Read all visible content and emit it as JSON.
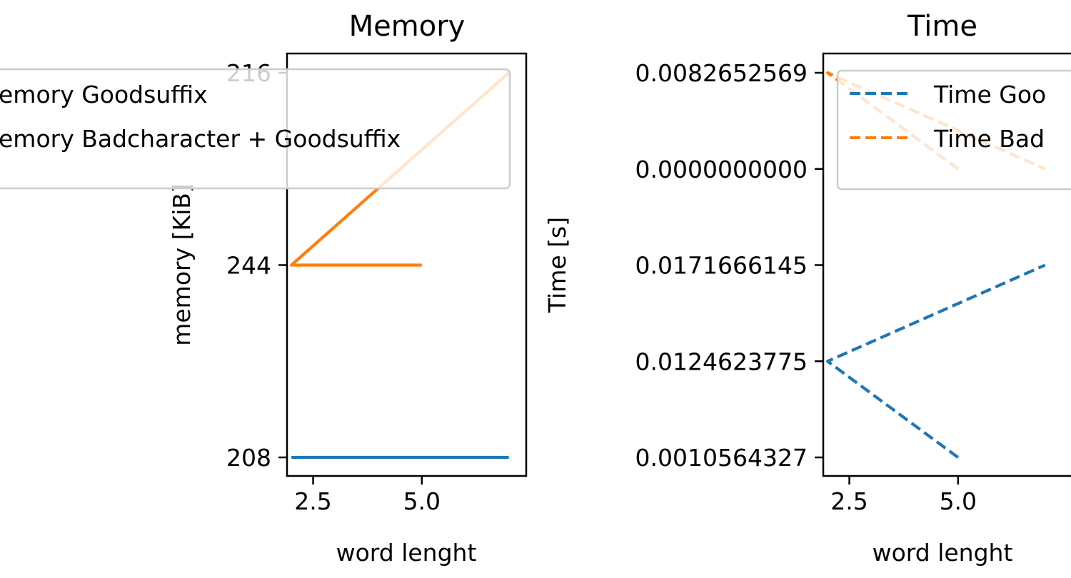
{
  "chart_data": [
    {
      "type": "line",
      "title": "Memory",
      "xlabel": "word lenght",
      "ylabel": "memory [KiB]",
      "xlim": [
        1.9,
        7.4
      ],
      "x_ticks": [
        "2.5",
        "5.0"
      ],
      "x_tick_values": [
        2.5,
        5.0
      ],
      "y_categories": [
        "208",
        "244",
        "216"
      ],
      "legend": "overlapping top-left",
      "series": [
        {
          "name": "Memory Goodsuffix",
          "color": "#1f77b4",
          "style": "solid",
          "points": [
            {
              "x": 2,
              "y": "208"
            },
            {
              "x": 5,
              "y": "208"
            },
            {
              "x": 7,
              "y": "208"
            }
          ]
        },
        {
          "name": "Memory Badcharacter + Goodsuffix",
          "color": "#ff7f0e",
          "style": "solid",
          "points": [
            {
              "x": 5,
              "y": "244"
            },
            {
              "x": 2,
              "y": "244"
            },
            {
              "x": 7,
              "y": "216"
            }
          ]
        }
      ]
    },
    {
      "type": "line",
      "title": "Time",
      "xlabel": "word lenght",
      "ylabel": "Time [s]",
      "xlim": [
        1.9,
        7.4
      ],
      "x_ticks": [
        "2.5",
        "5.0"
      ],
      "x_tick_values": [
        2.5,
        5.0
      ],
      "y_categories": [
        "0.0010564327",
        "0.0124623775",
        "0.0171666145",
        "0.0000000000",
        "0.0082652569"
      ],
      "legend": "upper-right",
      "series": [
        {
          "name": "Time Goodsuffix",
          "legend_label": "Time Goo",
          "color": "#1f77b4",
          "style": "dashed",
          "points": [
            {
              "x": 5,
              "y": "0.0010564327"
            },
            {
              "x": 2,
              "y": "0.0124623775"
            },
            {
              "x": 7,
              "y": "0.0171666145"
            }
          ]
        },
        {
          "name": "Time Badcharacter + Goodsuffix",
          "legend_label": "Time Bad",
          "color": "#ff7f0e",
          "style": "dashed",
          "points": [
            {
              "x": 5,
              "y": "0.0000000000"
            },
            {
              "x": 2,
              "y": "0.0082652569"
            },
            {
              "x": 7,
              "y": "0.0000000000"
            }
          ]
        }
      ]
    }
  ],
  "legend_memory": {
    "items": [
      "emory Goodsuffix",
      "emory Badcharacter + Goodsuffix"
    ]
  },
  "legend_time": {
    "items": [
      "Time Goo",
      "Time Bad"
    ]
  }
}
